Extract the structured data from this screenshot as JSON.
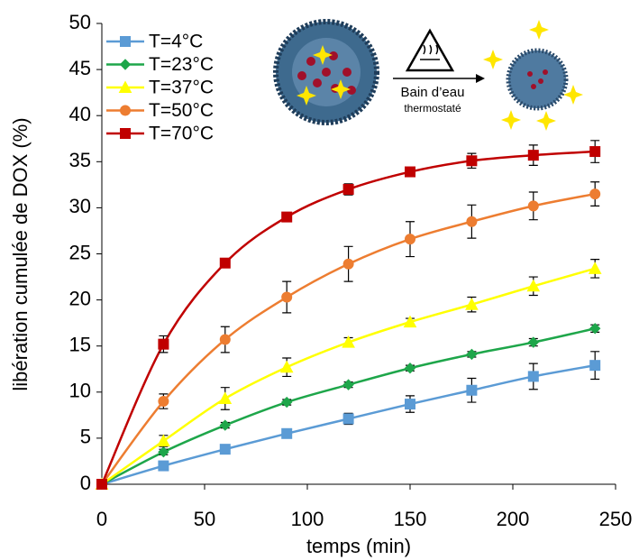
{
  "chart_data": {
    "type": "line",
    "x_label": "temps (min)",
    "y_label": "libération cumulée de DOX (%)",
    "x": [
      0,
      30,
      60,
      90,
      120,
      150,
      180,
      210,
      240
    ],
    "series": [
      {
        "name": "T=4°C",
        "color": "#5b9bd5",
        "marker": "square",
        "values": [
          0,
          2.0,
          3.8,
          5.5,
          7.1,
          8.7,
          10.2,
          11.7,
          12.9
        ],
        "errors": [
          0,
          0.2,
          0.3,
          0.3,
          0.6,
          0.9,
          1.3,
          1.4,
          1.5
        ]
      },
      {
        "name": "T=23°C",
        "color": "#1ea64a",
        "marker": "diamond",
        "values": [
          0,
          3.5,
          6.4,
          8.9,
          10.8,
          12.6,
          14.1,
          15.4,
          16.9
        ],
        "errors": [
          0,
          0.3,
          0.3,
          0.3,
          0.3,
          0.3,
          0.3,
          0.4,
          0.4
        ]
      },
      {
        "name": "T=37°C",
        "color": "#ffff00",
        "marker": "triangle",
        "values": [
          0,
          4.7,
          9.3,
          12.7,
          15.4,
          17.6,
          19.5,
          21.5,
          23.4
        ],
        "errors": [
          0,
          0.6,
          1.2,
          1.0,
          0.5,
          0.4,
          0.8,
          1.0,
          1.0
        ]
      },
      {
        "name": "T=50°C",
        "color": "#ed7d31",
        "marker": "circle",
        "values": [
          0,
          9.0,
          15.7,
          20.3,
          23.9,
          26.6,
          28.5,
          30.2,
          31.5
        ],
        "errors": [
          0,
          0.8,
          1.4,
          1.7,
          1.9,
          1.9,
          1.8,
          1.5,
          1.3
        ]
      },
      {
        "name": "T=70°C",
        "color": "#c00000",
        "marker": "square",
        "values": [
          0,
          15.2,
          24.0,
          29.0,
          32.0,
          33.9,
          35.1,
          35.7,
          36.1
        ],
        "errors": [
          0,
          0.9,
          0,
          0,
          0.6,
          0.3,
          0.8,
          1.1,
          1.2
        ]
      }
    ],
    "xlim": [
      0,
      250
    ],
    "xticks": [
      0,
      50,
      100,
      150,
      200,
      250
    ],
    "ylim": [
      0,
      50
    ],
    "yticks": [
      0,
      5,
      10,
      15,
      20,
      25,
      30,
      35,
      40,
      45,
      50
    ],
    "legend": "top-left",
    "smooth": true,
    "annotations": [
      "Bain d’eau",
      "thermostaté"
    ]
  }
}
